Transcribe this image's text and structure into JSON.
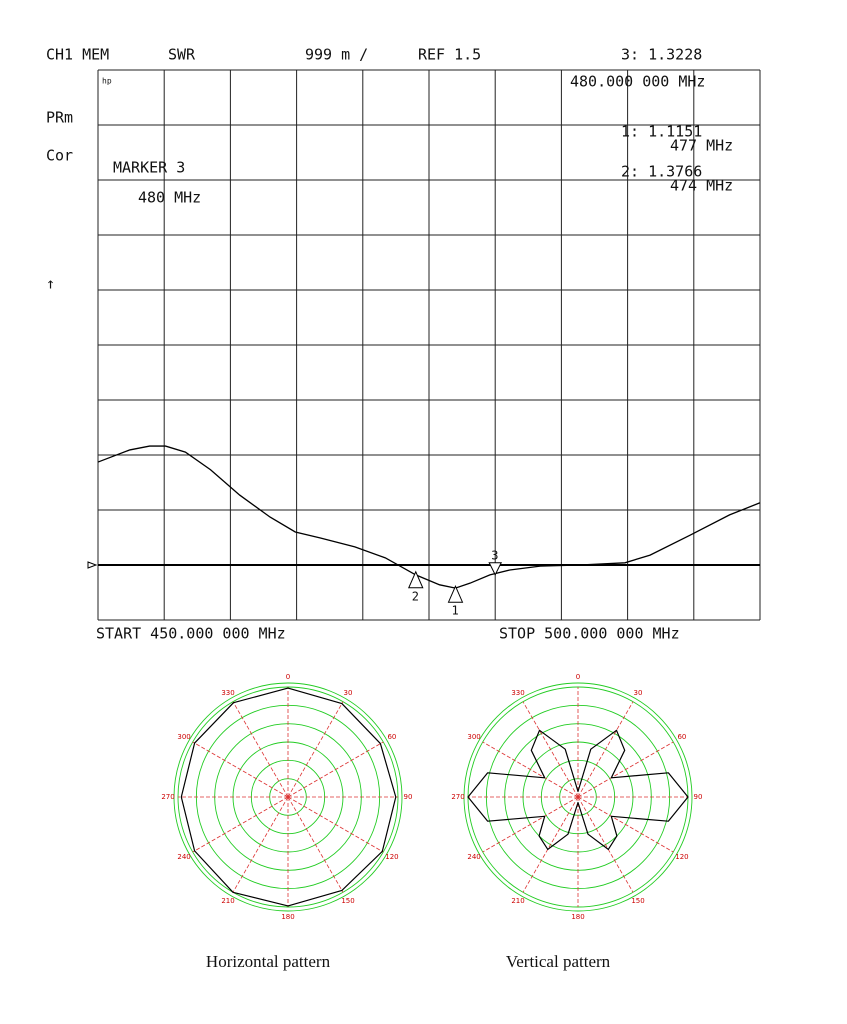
{
  "chart_data": [
    {
      "type": "line",
      "title": "SWR",
      "channel": "CH1 MEM",
      "scale_label": "999 m /",
      "ref_label": "REF 1.5",
      "reference": 1.5,
      "side_labels": [
        "PRm",
        "Cor",
        "↑"
      ],
      "logo": "hp",
      "annotation": [
        "MARKER 3",
        "480 MHz"
      ],
      "start_label": "START  450.000 000 MHz",
      "stop_label": "STOP  500.000 000 MHz",
      "xlim": [
        450,
        500
      ],
      "ylim": [
        0.501,
        10.491
      ],
      "x": [
        450,
        452.4,
        453.9,
        455.1,
        456.6,
        458.5,
        460.7,
        463.0,
        464.9,
        466.8,
        469.4,
        471.7,
        474.0,
        475.8,
        477.0,
        478.1,
        479.6,
        481.1,
        483.4,
        486.4,
        489.8,
        491.7,
        494.7,
        497.7,
        500
      ],
      "values": [
        3.37,
        3.59,
        3.66,
        3.66,
        3.55,
        3.23,
        2.77,
        2.37,
        2.1,
        1.99,
        1.83,
        1.63,
        1.32,
        1.14,
        1.08,
        1.17,
        1.32,
        1.41,
        1.48,
        1.5,
        1.54,
        1.68,
        2.04,
        2.41,
        2.63
      ],
      "color": "#000000",
      "markers": [
        {
          "id": "3",
          "x": 480,
          "value": 1.3228,
          "reading": "3:  1.3228",
          "freq": "480.000 000 MHz"
        },
        {
          "id": "1",
          "x": 477,
          "value": 1.1151,
          "reading": "1:  1.1151",
          "freq": "477 MHz"
        },
        {
          "id": "2",
          "x": 474,
          "value": 1.3766,
          "reading": "2:  1.3766",
          "freq": "474 MHz"
        }
      ]
    },
    {
      "type": "polar",
      "title": "Horizontal pattern",
      "theta": [
        0,
        30,
        60,
        90,
        120,
        150,
        180,
        210,
        240,
        270,
        300,
        330
      ],
      "r": [
        0.99,
        0.98,
        0.97,
        0.98,
        0.99,
        0.98,
        0.99,
        1.0,
        0.98,
        0.97,
        0.98,
        0.99
      ],
      "rlim": [
        0,
        1
      ],
      "angle_ticks": [
        0,
        30,
        60,
        90,
        120,
        150,
        180,
        210,
        240,
        270,
        300,
        330
      ],
      "color": "#000000"
    },
    {
      "type": "polar",
      "title": "Vertical pattern",
      "theta": [
        0,
        15,
        30,
        45,
        60,
        75,
        90,
        105,
        120,
        135,
        150,
        165,
        180,
        195,
        210,
        225,
        240,
        255,
        270,
        285,
        300,
        315,
        330,
        345
      ],
      "r": [
        0.05,
        0.45,
        0.7,
        0.6,
        0.35,
        0.85,
        1.0,
        0.85,
        0.35,
        0.5,
        0.55,
        0.35,
        0.05,
        0.35,
        0.55,
        0.5,
        0.35,
        0.85,
        1.0,
        0.85,
        0.35,
        0.6,
        0.7,
        0.45
      ],
      "rlim": [
        0,
        1
      ],
      "angle_ticks": [
        0,
        30,
        60,
        90,
        120,
        150,
        180,
        210,
        240,
        270,
        300,
        330
      ],
      "color": "#000000"
    }
  ]
}
